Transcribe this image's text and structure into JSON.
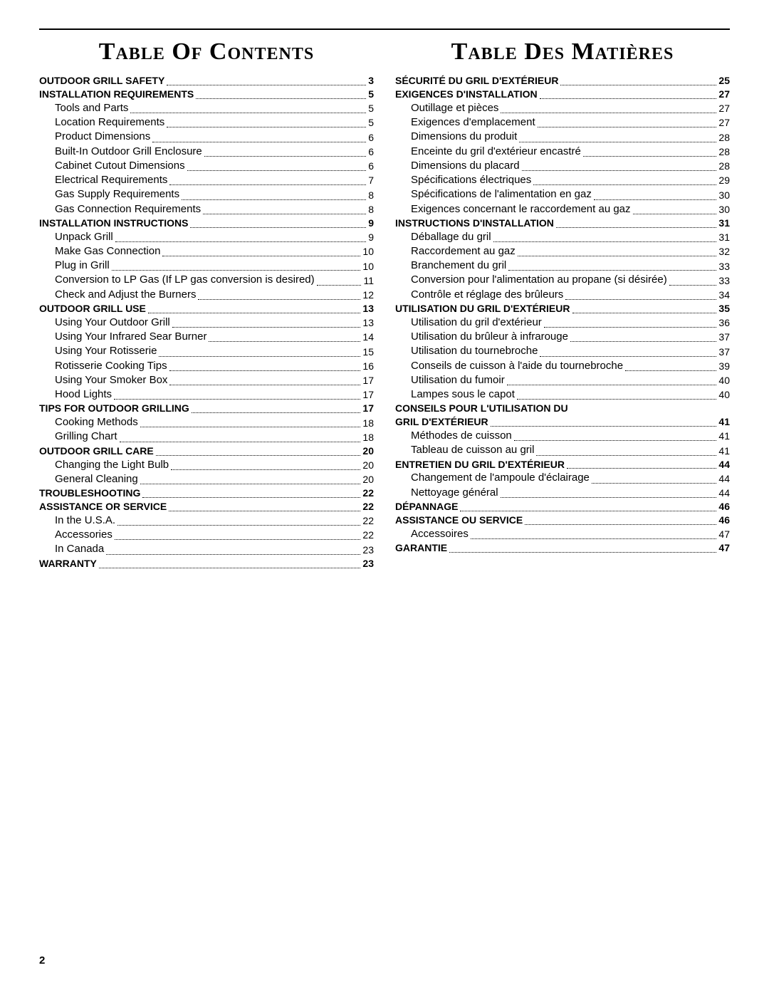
{
  "page_number": "2",
  "left": {
    "title": "Table Of Contents",
    "entries": [
      {
        "label": "Outdoor Grill Safety",
        "page": "3",
        "bold": true
      },
      {
        "label": "Installation Requirements",
        "page": "5",
        "bold": true
      },
      {
        "label": "Tools and Parts",
        "page": "5",
        "indent": true
      },
      {
        "label": "Location Requirements",
        "page": "5",
        "indent": true
      },
      {
        "label": "Product Dimensions",
        "page": "6",
        "indent": true
      },
      {
        "label": "Built-In Outdoor Grill Enclosure",
        "page": "6",
        "indent": true
      },
      {
        "label": "Cabinet Cutout Dimensions",
        "page": "6",
        "indent": true
      },
      {
        "label": "Electrical Requirements",
        "page": "7",
        "indent": true
      },
      {
        "label": "Gas Supply Requirements",
        "page": "8",
        "indent": true
      },
      {
        "label": "Gas Connection Requirements",
        "page": "8",
        "indent": true
      },
      {
        "label": "Installation Instructions",
        "page": "9",
        "bold": true
      },
      {
        "label": "Unpack Grill",
        "page": "9",
        "indent": true
      },
      {
        "label": "Make Gas Connection",
        "page": "10",
        "indent": true
      },
      {
        "label": "Plug in Grill",
        "page": "10",
        "indent": true
      },
      {
        "label": "Conversion to LP Gas (If LP gas conversion is desired)",
        "page": "11",
        "indent": true
      },
      {
        "label": "Check and Adjust the Burners",
        "page": "12",
        "indent": true
      },
      {
        "label": "Outdoor Grill Use",
        "page": "13",
        "bold": true
      },
      {
        "label": "Using Your Outdoor Grill",
        "page": "13",
        "indent": true
      },
      {
        "label": "Using Your Infrared Sear Burner",
        "page": "14",
        "indent": true
      },
      {
        "label": "Using Your Rotisserie",
        "page": "15",
        "indent": true
      },
      {
        "label": "Rotisserie Cooking Tips",
        "page": "16",
        "indent": true
      },
      {
        "label": "Using Your Smoker Box",
        "page": "17",
        "indent": true
      },
      {
        "label": "Hood Lights",
        "page": "17",
        "indent": true
      },
      {
        "label": "Tips For Outdoor Grilling",
        "page": "17",
        "bold": true
      },
      {
        "label": "Cooking Methods",
        "page": "18",
        "indent": true
      },
      {
        "label": "Grilling Chart",
        "page": "18",
        "indent": true
      },
      {
        "label": "Outdoor Grill Care",
        "page": "20",
        "bold": true
      },
      {
        "label": "Changing the Light Bulb",
        "page": "20",
        "indent": true
      },
      {
        "label": "General Cleaning",
        "page": "20",
        "indent": true
      },
      {
        "label": "Troubleshooting",
        "page": "22",
        "bold": true
      },
      {
        "label": "Assistance or Service",
        "page": "22",
        "bold": true
      },
      {
        "label": "In the U.S.A.",
        "page": "22",
        "indent": true
      },
      {
        "label": "Accessories",
        "page": "22",
        "indent": true
      },
      {
        "label": "In Canada",
        "page": "23",
        "indent": true
      },
      {
        "label": "Warranty",
        "page": "23",
        "bold": true
      }
    ]
  },
  "right": {
    "title": "Table Des Matières",
    "entries": [
      {
        "label": "Sécurité du gril d'extérieur",
        "page": "25",
        "bold": true
      },
      {
        "label": "Exigences d'installation",
        "page": "27",
        "bold": true
      },
      {
        "label": "Outillage et pièces",
        "page": "27",
        "indent": true
      },
      {
        "label": "Exigences d'emplacement",
        "page": "27",
        "indent": true
      },
      {
        "label": "Dimensions du produit",
        "page": "28",
        "indent": true
      },
      {
        "label": "Enceinte du gril d'extérieur encastré",
        "page": "28",
        "indent": true
      },
      {
        "label": "Dimensions du placard",
        "page": "28",
        "indent": true
      },
      {
        "label": "Spécifications électriques",
        "page": "29",
        "indent": true
      },
      {
        "label": "Spécifications de l'alimentation en gaz",
        "page": "30",
        "indent": true
      },
      {
        "label": "Exigences concernant le raccordement au gaz",
        "page": "30",
        "indent": true
      },
      {
        "label": "Instructions d'installation",
        "page": "31",
        "bold": true
      },
      {
        "label": "Déballage du gril",
        "page": "31",
        "indent": true
      },
      {
        "label": "Raccordement au gaz",
        "page": "32",
        "indent": true
      },
      {
        "label": "Branchement du gril",
        "page": "33",
        "indent": true
      },
      {
        "label": "Conversion pour l'alimentation au propane (si désirée)",
        "page": "33",
        "indent": true
      },
      {
        "label": "Contrôle et réglage des brûleurs",
        "page": "34",
        "indent": true
      },
      {
        "label": "Utilisation du gril d'extérieur",
        "page": "35",
        "bold": true
      },
      {
        "label": "Utilisation du gril d'extérieur",
        "page": "36",
        "indent": true
      },
      {
        "label": "Utilisation du brûleur à infrarouge",
        "page": "37",
        "indent": true
      },
      {
        "label": "Utilisation du tournebroche",
        "page": "37",
        "indent": true
      },
      {
        "label": "Conseils de cuisson à l'aide du tournebroche",
        "page": "39",
        "indent": true
      },
      {
        "label": "Utilisation du fumoir",
        "page": "40",
        "indent": true
      },
      {
        "label": "Lampes sous le capot",
        "page": "40",
        "indent": true
      },
      {
        "label": "Conseils pour l'utilisation du",
        "bold": true,
        "no_page": true
      },
      {
        "label": "gril d'extérieur",
        "page": "41",
        "bold": true
      },
      {
        "label": "Méthodes de cuisson",
        "page": "41",
        "indent": true
      },
      {
        "label": "Tableau de cuisson au gril",
        "page": "41",
        "indent": true
      },
      {
        "label": "Entretien du gril d'extérieur",
        "page": "44",
        "bold": true
      },
      {
        "label": "Changement de l'ampoule d'éclairage",
        "page": "44",
        "indent": true
      },
      {
        "label": "Nettoyage général",
        "page": "44",
        "indent": true
      },
      {
        "label": "Dépannage",
        "page": "46",
        "bold": true
      },
      {
        "label": "Assistance ou service",
        "page": "46",
        "bold": true
      },
      {
        "label": "Accessoires",
        "page": "47",
        "indent": true
      },
      {
        "label": "Garantie",
        "page": "47",
        "bold": true
      }
    ]
  }
}
